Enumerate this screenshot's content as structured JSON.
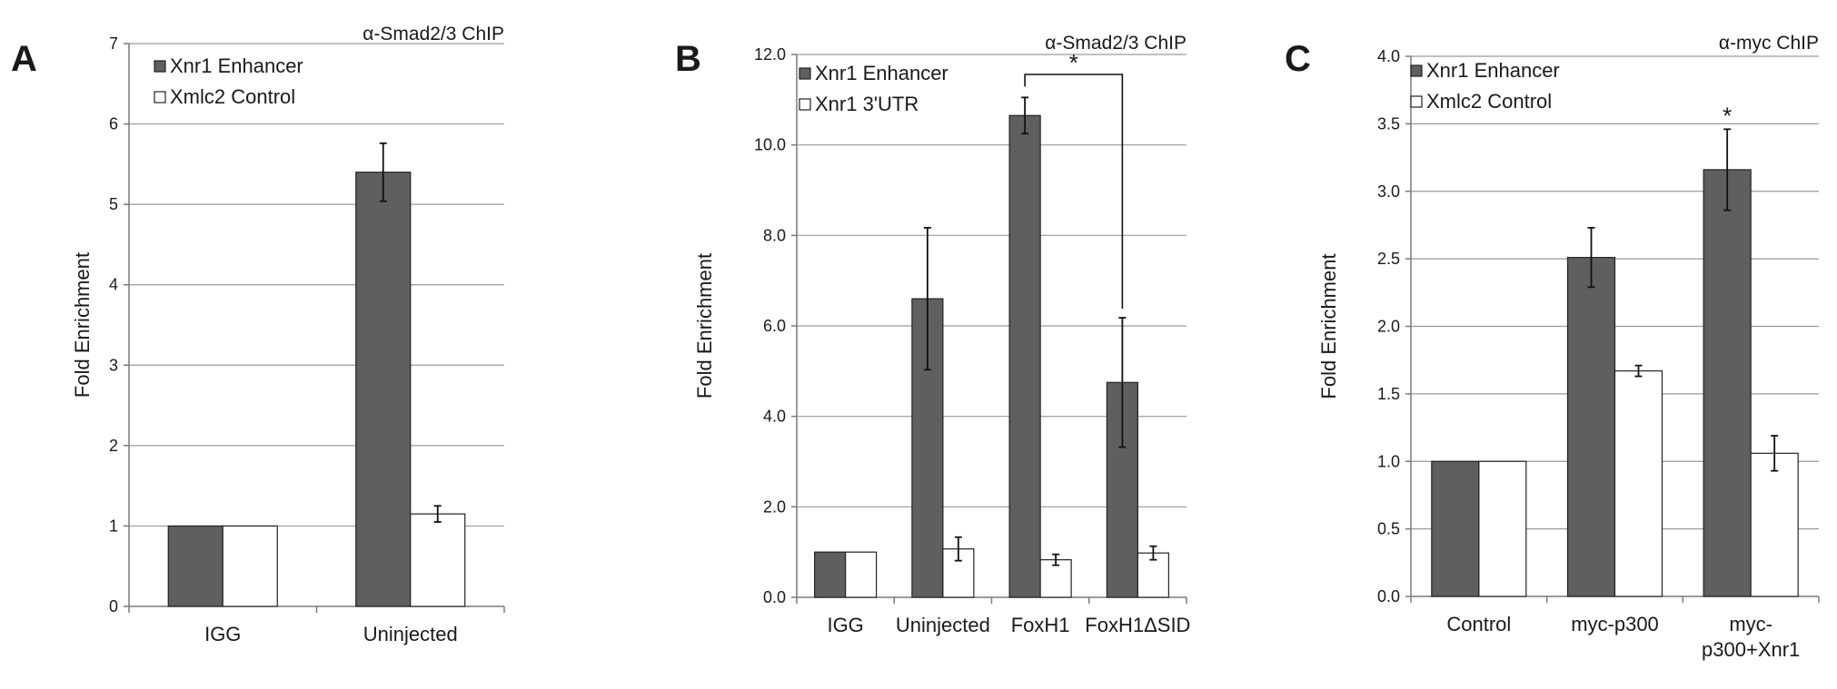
{
  "chart_data": [
    {
      "type": "bar",
      "panel": "A",
      "title": "α-Smad2/3 ChIP",
      "ylabel": "Fold Enrichment",
      "ylim": [
        0,
        7
      ],
      "yticks": [
        "0",
        "1",
        "2",
        "3",
        "4",
        "5",
        "6",
        "7"
      ],
      "categories": [
        "IGG",
        "Uninjected"
      ],
      "series": [
        {
          "name": "Xnr1 Enhancer",
          "color": "#5f5f5f",
          "values": [
            1.0,
            5.4
          ],
          "errors": [
            0,
            0.36
          ]
        },
        {
          "name": "Xmlc2 Control",
          "color": "#ffffff",
          "values": [
            1.0,
            1.15
          ],
          "errors": [
            0,
            0.1
          ]
        }
      ],
      "annotations": [],
      "grid": true,
      "legend": "top-left"
    },
    {
      "type": "bar",
      "panel": "B",
      "title": "α-Smad2/3 ChIP",
      "ylabel": "Fold Enrichment",
      "ylim": [
        0,
        12
      ],
      "yticks": [
        "0.0",
        "2.0",
        "4.0",
        "6.0",
        "8.0",
        "10.0",
        "12.0"
      ],
      "categories": [
        "IGG",
        "Uninjected",
        "FoxH1",
        "FoxH1ΔSID"
      ],
      "series": [
        {
          "name": "Xnr1 Enhancer",
          "color": "#5f5f5f",
          "values": [
            1.0,
            6.6,
            10.65,
            4.75
          ],
          "errors": [
            0,
            1.57,
            0.4,
            1.43
          ]
        },
        {
          "name": "Xnr1 3'UTR",
          "color": "#ffffff",
          "values": [
            1.0,
            1.07,
            0.83,
            0.98
          ],
          "errors": [
            0,
            0.26,
            0.12,
            0.15
          ]
        }
      ],
      "annotations": [
        {
          "text": "*",
          "from": "FoxH1",
          "to": "FoxH1ΔSID"
        }
      ],
      "grid": true,
      "legend": "top-left"
    },
    {
      "type": "bar",
      "panel": "C",
      "title": "α-myc ChIP",
      "ylabel": "Fold Enrichment",
      "ylim": [
        0,
        4
      ],
      "yticks": [
        "0.0",
        "0.5",
        "1.0",
        "1.5",
        "2.0",
        "2.5",
        "3.0",
        "3.5",
        "4.0"
      ],
      "categories": [
        "Control",
        "myc-p300",
        "myc-p300+Xnr1"
      ],
      "category_lines": [
        [
          "Control"
        ],
        [
          "myc-p300"
        ],
        [
          "myc-",
          "p300+Xnr1"
        ]
      ],
      "series": [
        {
          "name": "Xnr1 Enhancer",
          "color": "#5f5f5f",
          "values": [
            1.0,
            2.51,
            3.16
          ],
          "errors": [
            0,
            0.22,
            0.3
          ]
        },
        {
          "name": "Xmlc2 Control",
          "color": "#ffffff",
          "values": [
            1.0,
            1.67,
            1.06
          ],
          "errors": [
            0,
            0.04,
            0.13
          ]
        }
      ],
      "annotations": [
        {
          "text": "*",
          "over": "myc-p300+Xnr1"
        }
      ],
      "grid": true,
      "legend": "top-left"
    }
  ]
}
